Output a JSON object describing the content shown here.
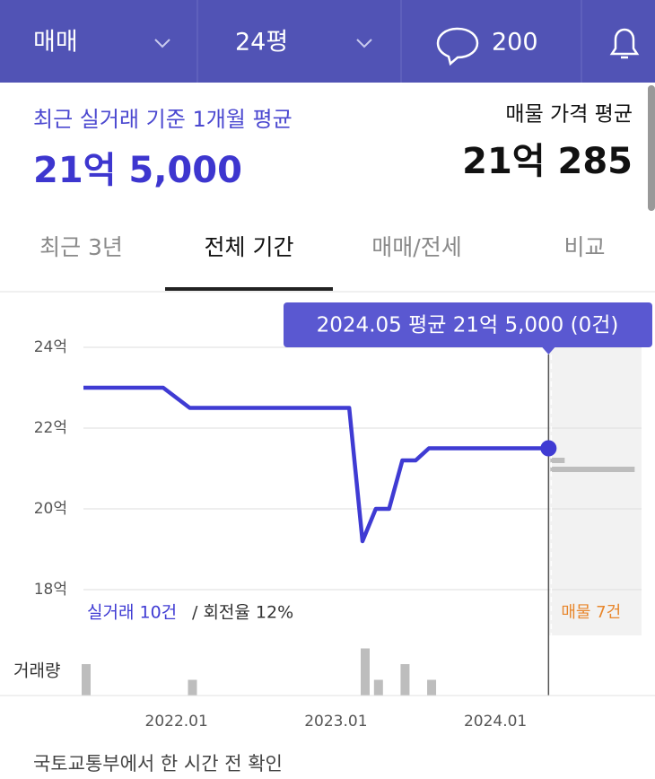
{
  "header": {
    "deal_type": "매매",
    "size": "24평",
    "comments": "200"
  },
  "summary": {
    "recent_label": "최근 실거래 기준 1개월 평균",
    "recent_price": "21억 5,000",
    "listing_label": "매물 가격 평균",
    "listing_price": "21억 285"
  },
  "tabs": {
    "items": [
      "최근 3년",
      "전체 기간",
      "매매/전세",
      "비교"
    ],
    "active": 1
  },
  "chart_data": {
    "type": "line",
    "tooltip": "2024.05 평균 21억 5,000 (0건)",
    "x": [
      "2021.06",
      "2021.12",
      "2022.02",
      "2023.02",
      "2023.03",
      "2023.04",
      "2023.05",
      "2023.06",
      "2023.07",
      "2023.08",
      "2024.05"
    ],
    "series": [
      {
        "name": "실거래 10건",
        "color": "#3f3bd3",
        "values": [
          23.0,
          23.0,
          22.5,
          22.5,
          19.2,
          20.0,
          20.0,
          21.2,
          21.2,
          21.5,
          21.5
        ]
      }
    ],
    "turnover": "/ 회전율 12%",
    "listing_label": "매물 7건",
    "xlim": [
      "2021.06",
      "2024.12"
    ],
    "xticks": [
      "2022.01",
      "2023.01",
      "2024.01"
    ],
    "ylim": [
      18,
      24
    ],
    "yticks": [
      {
        "value": 18,
        "label": "18억"
      },
      {
        "value": 20,
        "label": "20억"
      },
      {
        "value": 22,
        "label": "22억"
      },
      {
        "value": 24,
        "label": "24억"
      }
    ],
    "grid": true,
    "volume": {
      "label": "거래량",
      "color": "#bdbdbd",
      "x": [
        "2021.06",
        "2022.02",
        "2023.03",
        "2023.04",
        "2023.06",
        "2023.08"
      ],
      "values": [
        2,
        1,
        3,
        1,
        2,
        1
      ]
    }
  },
  "footer": "국토교통부에서 한 시간 전 확인"
}
